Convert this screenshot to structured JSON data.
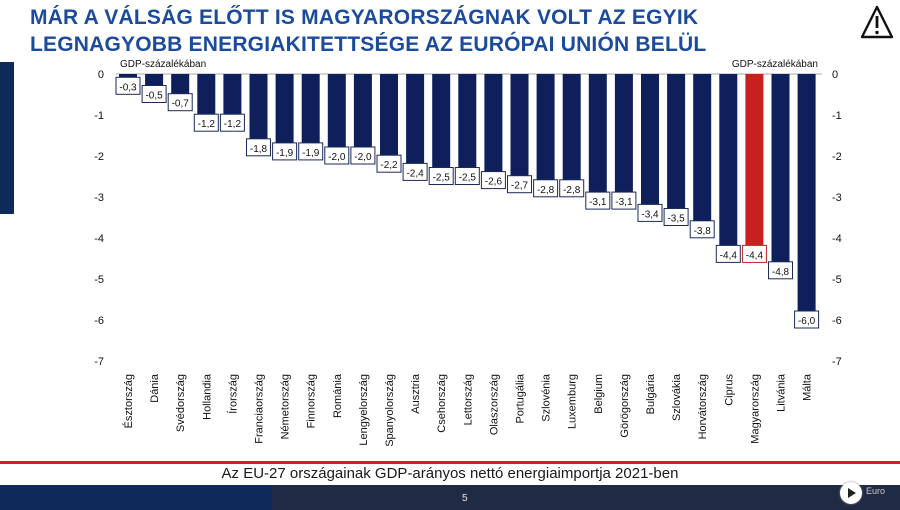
{
  "title": "Már a válság előtt is Magyarországnak volt az egyik legnagyobb energiakitettsége az Európai Unión belül",
  "caption": "Az EU-27 országainak GDP-arányos nettó energiaimportja 2021-ben",
  "page_number": "5",
  "eu_mark": "Euro",
  "colors": {
    "bar": "#0f1f5c",
    "highlight": "#c8201f",
    "title": "#1c4a9c",
    "footer_line": "#d21f26"
  },
  "chart_data": {
    "type": "bar",
    "categories": [
      "Észtország",
      "Dánia",
      "Svédország",
      "Hollandia",
      "Írország",
      "Franciaország",
      "Németország",
      "Finnország",
      "Románia",
      "Lengyelország",
      "Spanyolország",
      "Ausztria",
      "Csehország",
      "Lettország",
      "Olaszország",
      "Portugália",
      "Szlovénia",
      "Luxemburg",
      "Belgium",
      "Görögország",
      "Bulgária",
      "Szlovákia",
      "Horvátország",
      "Ciprus",
      "Magyarország",
      "Litvánia",
      "Málta"
    ],
    "values": [
      -0.3,
      -0.5,
      -0.7,
      -1.2,
      -1.2,
      -1.8,
      -1.9,
      -1.9,
      -2.0,
      -2.0,
      -2.2,
      -2.4,
      -2.5,
      -2.5,
      -2.6,
      -2.7,
      -2.8,
      -2.8,
      -3.1,
      -3.1,
      -3.4,
      -3.5,
      -3.8,
      -4.4,
      -4.4,
      -4.8,
      -6.0
    ],
    "labels": [
      "-0,3",
      "-0,5",
      "-0,7",
      "-1,2",
      "-1,2",
      "-1,8",
      "-1,9",
      "-1,9",
      "-2,0",
      "-2,0",
      "-2,2",
      "-2,4",
      "-2,5",
      "-2,5",
      "-2,6",
      "-2,7",
      "-2,8",
      "-2,8",
      "-3,1",
      "-3,1",
      "-3,4",
      "-3,5",
      "-3,8",
      "-4,4",
      "-4,4",
      "-4,8",
      "-6,0"
    ],
    "highlight_category": "Magyarország",
    "ylim": [
      -7,
      0
    ],
    "yticks": [
      0,
      -1,
      -2,
      -3,
      -4,
      -5,
      -6,
      -7
    ],
    "ylabel_left": "GDP-százalékában",
    "ylabel_right": "GDP-százalékában",
    "grid": false
  }
}
